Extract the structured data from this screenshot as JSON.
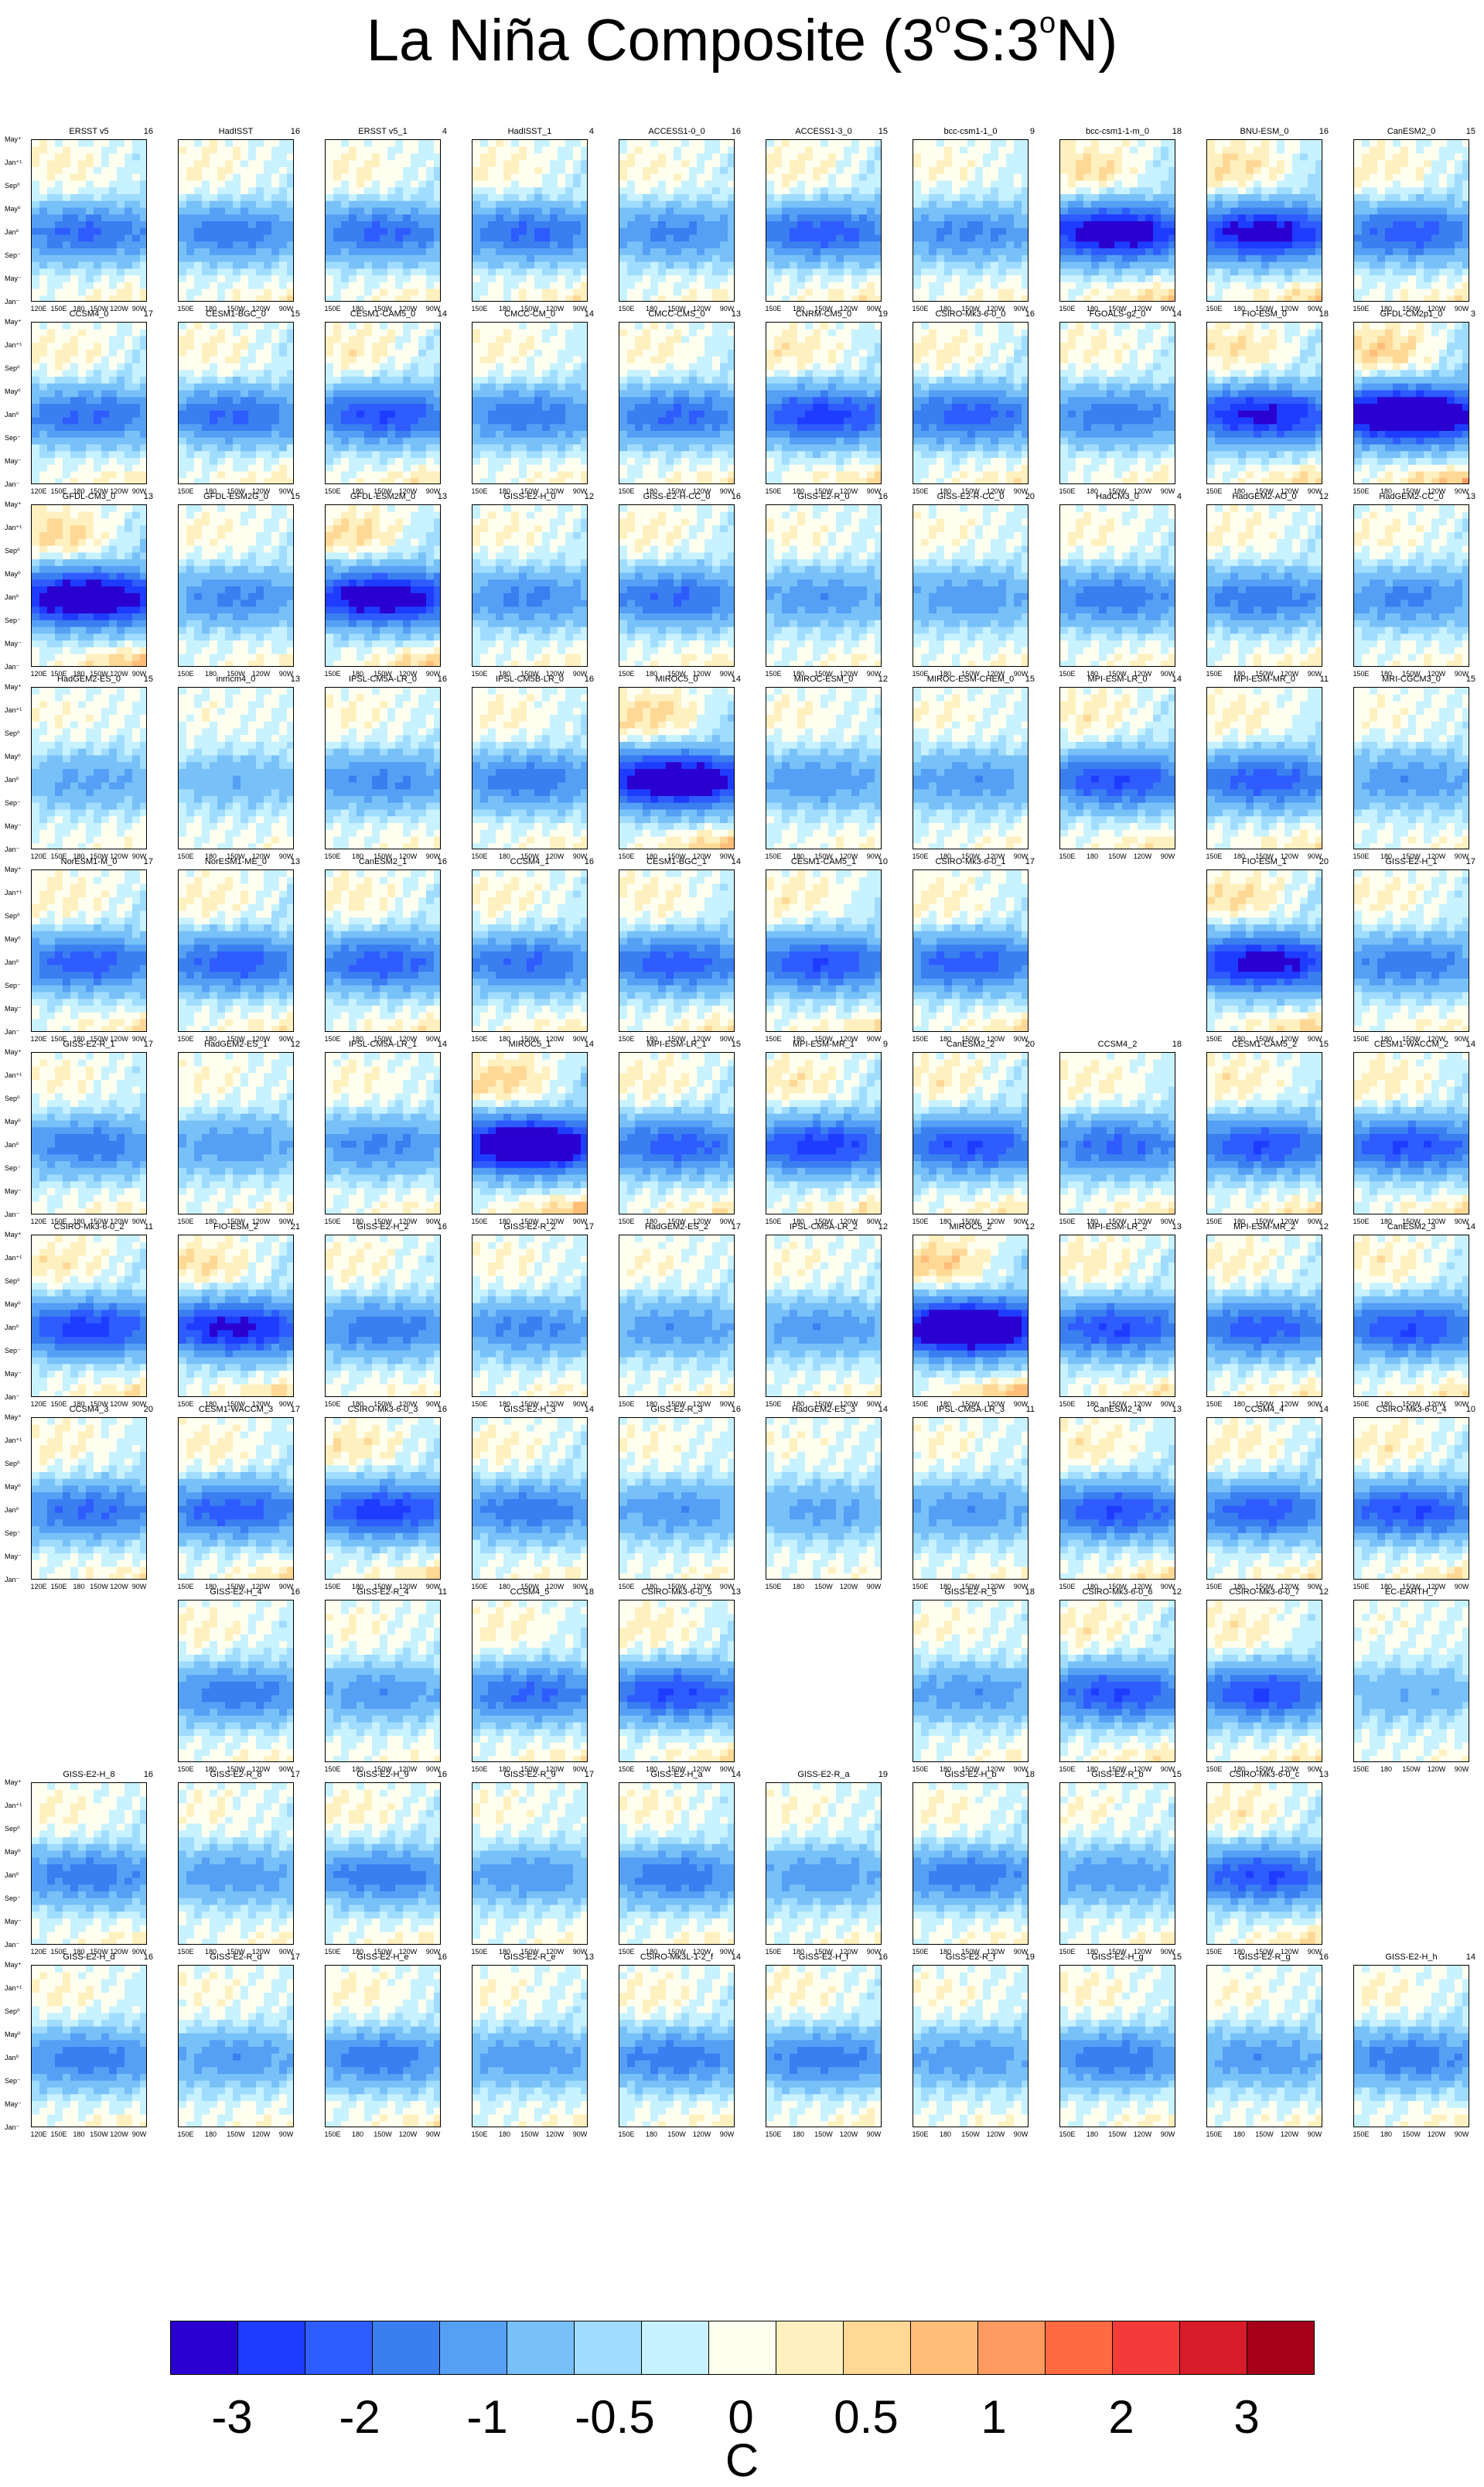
{
  "title": {
    "main": "La Niña Composite (3",
    "deg1": "o",
    "mid": "S:3",
    "deg2": "o",
    "end": "N)"
  },
  "colorbar": {
    "colors": [
      "#2a00d0",
      "#1e3cff",
      "#2e5cff",
      "#3a7ef0",
      "#55a0f5",
      "#78c0f8",
      "#a0dcff",
      "#c8f2ff",
      "#fffff0",
      "#fff0c0",
      "#ffd896",
      "#ffbe78",
      "#ff9a60",
      "#ff6a40",
      "#f53a3a",
      "#d81c2a",
      "#a6001a"
    ],
    "tick_labels": [
      "-3",
      "-2",
      "-1",
      "-0.5",
      "0",
      "0.5",
      "1",
      "2",
      "3"
    ],
    "unit": "C"
  },
  "axes": {
    "y_tick_labels": [
      "May⁺",
      "Jan⁺¹",
      "Sep⁰",
      "May⁰",
      "Jan⁰",
      "Sep⁻",
      "May⁻",
      "Jan⁻"
    ],
    "x_tick_labels_full": [
      "120E",
      "150E",
      "180",
      "150W",
      "120W",
      "90W"
    ],
    "x_tick_labels_short": [
      "150E",
      "180",
      "150W",
      "120W",
      "90W"
    ]
  },
  "panels": [
    {
      "name": "ERSST v5",
      "n": "16",
      "s": 0.9
    },
    {
      "name": "HadISST",
      "n": "16",
      "s": 0.8
    },
    {
      "name": "ERSST v5_1",
      "n": "4",
      "s": 0.9
    },
    {
      "name": "HadISST_1",
      "n": "4",
      "s": 0.9
    },
    {
      "name": "ACCESS1-0_0",
      "n": "16",
      "s": 0.7
    },
    {
      "name": "ACCESS1-3_0",
      "n": "15",
      "s": 1.0
    },
    {
      "name": "bcc-csm1-1_0",
      "n": "9",
      "s": 0.7
    },
    {
      "name": "bcc-csm1-1-m_0",
      "n": "18",
      "s": 1.6
    },
    {
      "name": "BNU-ESM_0",
      "n": "16",
      "s": 1.5
    },
    {
      "name": "CanESM2_0",
      "n": "15",
      "s": 1.0
    },
    {
      "name": "CCSM4_0",
      "n": "17",
      "s": 0.9
    },
    {
      "name": "CESM1-BGC_0",
      "n": "15",
      "s": 0.9
    },
    {
      "name": "CESM1-CAM5_0",
      "n": "14",
      "s": 1.1
    },
    {
      "name": "CMCC-CM_0",
      "n": "14",
      "s": 0.8
    },
    {
      "name": "CMCC-CMS_0",
      "n": "13",
      "s": 0.9
    },
    {
      "name": "CNRM-CM5_0",
      "n": "19",
      "s": 1.2
    },
    {
      "name": "CSIRO-Mk3-6-0_0",
      "n": "16",
      "s": 1.0
    },
    {
      "name": "FGOALS-g2_0",
      "n": "14",
      "s": 0.8
    },
    {
      "name": "FIO-ESM_0",
      "n": "18",
      "s": 1.4
    },
    {
      "name": "GFDL-CM2p1_0",
      "n": "3",
      "s": 2.0
    },
    {
      "name": "GFDL-CM3_0",
      "n": "13",
      "s": 1.8
    },
    {
      "name": "GFDL-ESM2G_0",
      "n": "15",
      "s": 0.7
    },
    {
      "name": "GFDL-ESM2M_0",
      "n": "13",
      "s": 1.6
    },
    {
      "name": "GISS-E2-H_0",
      "n": "12",
      "s": 0.7
    },
    {
      "name": "GISS-E2-H-CC_0",
      "n": "16",
      "s": 0.9
    },
    {
      "name": "GISS-E2-R_0",
      "n": "16",
      "s": 0.6
    },
    {
      "name": "GISS-E2-R-CC_0",
      "n": "20",
      "s": 0.6
    },
    {
      "name": "HadCM3_0",
      "n": "4",
      "s": 0.8
    },
    {
      "name": "HadGEM2-AO_0",
      "n": "12",
      "s": 0.8
    },
    {
      "name": "HadGEM2-CC_0",
      "n": "13",
      "s": 0.7
    },
    {
      "name": "HadGEM2-ES_0",
      "n": "15",
      "s": 0.5
    },
    {
      "name": "inmcm4_0",
      "n": "13",
      "s": 0.4
    },
    {
      "name": "IPSL-CM5A-LR_0",
      "n": "16",
      "s": 0.7
    },
    {
      "name": "IPSL-CM5B-LR_0",
      "n": "16",
      "s": 0.8
    },
    {
      "name": "MIROC5_0",
      "n": "14",
      "s": 1.8
    },
    {
      "name": "MIROC-ESM_0",
      "n": "12",
      "s": 0.6
    },
    {
      "name": "MIROC-ESM-CHEM_0",
      "n": "15",
      "s": 0.6
    },
    {
      "name": "MPI-ESM-LR_0",
      "n": "14",
      "s": 1.1
    },
    {
      "name": "MPI-ESM-MR_0",
      "n": "11",
      "s": 1.0
    },
    {
      "name": "MRI-CGCM3_0",
      "n": "15",
      "s": 0.6
    },
    {
      "name": "NorESM1-M_0",
      "n": "17",
      "s": 1.0
    },
    {
      "name": "NorESM1-ME_0",
      "n": "13",
      "s": 1.0
    },
    {
      "name": "CanESM2_1",
      "n": "16",
      "s": 1.0
    },
    {
      "name": "CCSM4_1",
      "n": "16",
      "s": 0.9
    },
    {
      "name": "CESM1-BGC_1",
      "n": "14",
      "s": 1.0
    },
    {
      "name": "CESM1-CAM5_1",
      "n": "10",
      "s": 1.1
    },
    {
      "name": "CSIRO-Mk3-6-0_1",
      "n": "17",
      "s": 1.0
    },
    null,
    {
      "name": "FIO-ESM_1",
      "n": "20",
      "s": 1.5
    },
    {
      "name": "GISS-E2-H_1",
      "n": "17",
      "s": 0.8
    },
    {
      "name": "GISS-E2-R_1",
      "n": "17",
      "s": 0.8
    },
    {
      "name": "HadGEM2-ES_1",
      "n": "12",
      "s": 0.6
    },
    {
      "name": "IPSL-CM5A-LR_1",
      "n": "14",
      "s": 0.7
    },
    {
      "name": "MIROC5_1",
      "n": "14",
      "s": 1.9
    },
    {
      "name": "MPI-ESM-LR_1",
      "n": "15",
      "s": 1.0
    },
    {
      "name": "MPI-ESM-MR_1",
      "n": "9",
      "s": 1.2
    },
    {
      "name": "CanESM2_2",
      "n": "20",
      "s": 1.1
    },
    {
      "name": "CCSM4_2",
      "n": "18",
      "s": 0.9
    },
    {
      "name": "CESM1-CAM5_2",
      "n": "15",
      "s": 1.1
    },
    {
      "name": "CESM1-WACCM_2",
      "n": "14",
      "s": 1.1
    },
    {
      "name": "CSIRO-Mk3-6-0_2",
      "n": "11",
      "s": 1.2
    },
    {
      "name": "FIO-ESM_2",
      "n": "21",
      "s": 1.4
    },
    {
      "name": "GISS-E2-H_2",
      "n": "16",
      "s": 0.8
    },
    {
      "name": "GISS-E2-R_2",
      "n": "17",
      "s": 0.7
    },
    {
      "name": "HadGEM2-ES_2",
      "n": "17",
      "s": 0.6
    },
    {
      "name": "IPSL-CM5A-LR_2",
      "n": "12",
      "s": 0.6
    },
    {
      "name": "MIROC5_2",
      "n": "12",
      "s": 2.0
    },
    {
      "name": "MPI-ESM-LR_2",
      "n": "13",
      "s": 1.1
    },
    {
      "name": "MPI-ESM-MR_2",
      "n": "12",
      "s": 1.0
    },
    {
      "name": "CanESM2_3",
      "n": "14",
      "s": 1.1
    },
    {
      "name": "CCSM4_3",
      "n": "20",
      "s": 0.9
    },
    {
      "name": "CESM1-WACCM_3",
      "n": "17",
      "s": 1.0
    },
    {
      "name": "CSIRO-Mk3-6-0_3",
      "n": "16",
      "s": 1.2
    },
    {
      "name": "GISS-E2-H_3",
      "n": "14",
      "s": 0.8
    },
    {
      "name": "GISS-E2-R_3",
      "n": "16",
      "s": 0.6
    },
    {
      "name": "HadGEM2-ES_3",
      "n": "14",
      "s": 0.5
    },
    {
      "name": "IPSL-CM5A-LR_3",
      "n": "11",
      "s": 0.6
    },
    {
      "name": "CanESM2_4",
      "n": "13",
      "s": 1.1
    },
    {
      "name": "CCSM4_4",
      "n": "14",
      "s": 1.0
    },
    {
      "name": "CSIRO-Mk3-6-0_4",
      "n": "10",
      "s": 1.1
    },
    null,
    {
      "name": "GISS-E2-H_4",
      "n": "16",
      "s": 0.8
    },
    {
      "name": "GISS-E2-R_4",
      "n": "11",
      "s": 0.6
    },
    {
      "name": "CCSM4_5",
      "n": "18",
      "s": 0.9
    },
    {
      "name": "CSIRO-Mk3-6-0_5",
      "n": "13",
      "s": 1.1
    },
    null,
    {
      "name": "GISS-E2-R_5",
      "n": "18",
      "s": 0.6
    },
    {
      "name": "CSIRO-Mk3-6-0_6",
      "n": "12",
      "s": 1.1
    },
    {
      "name": "CSIRO-Mk3-6-0_7",
      "n": "12",
      "s": 1.1
    },
    {
      "name": "EC-EARTH_7",
      "n": "",
      "s": 0.4
    },
    {
      "name": "GISS-E2-H_8",
      "n": "16",
      "s": 0.8
    },
    {
      "name": "GISS-E2-R_8",
      "n": "17",
      "s": 0.6
    },
    {
      "name": "GISS-E2-H_9",
      "n": "16",
      "s": 0.8
    },
    {
      "name": "GISS-E2-R_9",
      "n": "17",
      "s": 0.6
    },
    {
      "name": "GISS-E2-H_a",
      "n": "14",
      "s": 0.8
    },
    {
      "name": "GISS-E2-R_a",
      "n": "19",
      "s": 0.6
    },
    {
      "name": "GISS-E2-H_b",
      "n": "18",
      "s": 0.8
    },
    {
      "name": "GISS-E2-R_b",
      "n": "15",
      "s": 0.6
    },
    {
      "name": "CSIRO-Mk3-6-0_c",
      "n": "13",
      "s": 1.1
    },
    null,
    {
      "name": "GISS-E2-H_d",
      "n": "16",
      "s": 0.8
    },
    {
      "name": "GISS-E2-R_d",
      "n": "17",
      "s": 0.6
    },
    {
      "name": "GISS-E2-H_e",
      "n": "16",
      "s": 0.8
    },
    {
      "name": "GISS-E2-R_e",
      "n": "13",
      "s": 0.6
    },
    {
      "name": "CSIRO-Mk3L-1-2_f",
      "n": "14",
      "s": 0.8
    },
    {
      "name": "GISS-E2-H_f",
      "n": "16",
      "s": 0.8
    },
    {
      "name": "GISS-E2-R_f",
      "n": "19",
      "s": 0.6
    },
    {
      "name": "GISS-E2-H_g",
      "n": "15",
      "s": 0.8
    },
    {
      "name": "GISS-E2-R_g",
      "n": "16",
      "s": 0.6
    },
    {
      "name": "GISS-E2-H_h",
      "n": "14",
      "s": 0.8
    },
    {
      "name": "GISS-E2-R_h",
      "n": "15",
      "s": 0.7
    },
    {
      "name": "GISS-E2-H_i",
      "n": "18",
      "s": 0.8
    },
    {
      "name": "GISS-E2-R_i",
      "n": "16",
      "s": 0.6
    }
  ],
  "chart_data": {
    "type": "heatmap",
    "title": "La Niña Composite (3oS:3oN)",
    "colorbar_levels": [
      -3,
      -2.5,
      -2,
      -1.5,
      -1,
      -0.5,
      -0.25,
      0,
      0.25,
      0.5,
      0.75,
      1,
      1.5,
      2,
      2.5,
      3
    ],
    "colorbar_tick_labels": [
      "-3",
      "-2",
      "-1",
      "-0.5",
      "0",
      "0.5",
      "1",
      "2",
      "3"
    ],
    "unit": "C",
    "x_axis": [
      "120E",
      "150E",
      "180",
      "150W",
      "120W",
      "90W"
    ],
    "y_axis": [
      "May+",
      "Jan+1",
      "Sep0",
      "May0",
      "Jan0",
      "Sep-",
      "May-",
      "Jan-"
    ]
  }
}
